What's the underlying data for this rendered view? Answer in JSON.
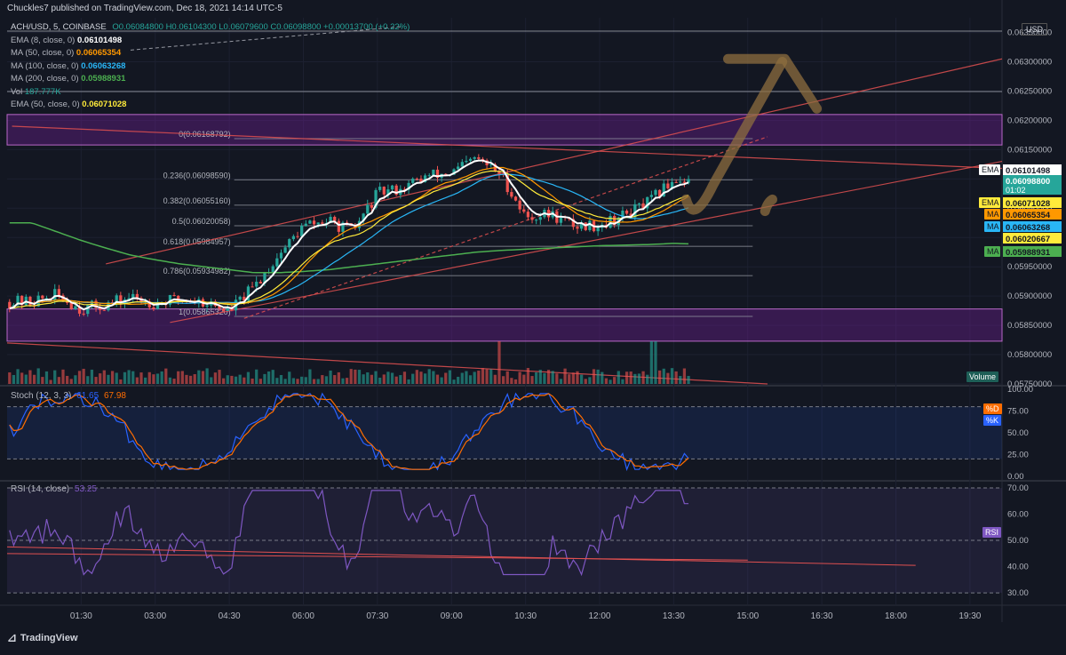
{
  "header": {
    "published": "Chuckles7 published on TradingView.com, Dec 18, 2021 14:14 UTC-5"
  },
  "symbol_line": {
    "symbol": "ACH/USD, 5, COINBASE",
    "ohlc": "O0.06084800 H0.06104300 L0.06079600 C0.06098800 +0.00013700 (+0.22%)"
  },
  "legend": [
    {
      "label": "EMA (8, close, 0)",
      "value": "0.06101498",
      "color": "#ffffff"
    },
    {
      "label": "MA (50, close, 0)",
      "value": "0.06065354",
      "color": "#ff9800"
    },
    {
      "label": "MA (100, close, 0)",
      "value": "0.06063268",
      "color": "#29b6f6"
    },
    {
      "label": "MA (200, close, 0)",
      "value": "0.05988931",
      "color": "#4caf50"
    },
    {
      "label": "Vol",
      "value": "187.777K",
      "color": "#26a69a"
    },
    {
      "label": "EMA (50, close, 0)",
      "value": "0.06071028",
      "color": "#ffeb3b"
    }
  ],
  "currency": "USD",
  "brand": "TradingView",
  "colors": {
    "bg": "#131722",
    "up": "#26a69a",
    "down": "#ef5350",
    "zone": "#7b1fa2",
    "trend": "#e05050",
    "arrow": "#8d6e3f"
  },
  "chart_data": [
    {
      "type": "candlestick",
      "title": "ACH/USD, 5, COINBASE",
      "ylim": [
        0.0575,
        0.0636
      ],
      "y_ticks": [
        "0.06350000",
        "0.06300000",
        "0.06250000",
        "0.06200000",
        "0.06150000",
        "0.06100000",
        "0.06050000",
        "0.06000000",
        "0.05950000",
        "0.05900000",
        "0.05850000",
        "0.05800000",
        "0.05750000"
      ],
      "x_ticks": [
        "01:30",
        "03:00",
        "04:30",
        "06:00",
        "07:30",
        "09:00",
        "10:30",
        "12:00",
        "13:30",
        "15:00",
        "16:30",
        "18:00",
        "19:30"
      ],
      "price_tags": [
        {
          "label": "EMA",
          "value": "0.06101498",
          "bg": "#ffffff",
          "fg": "#131722"
        },
        {
          "label": "",
          "value": "0.06098800",
          "sub": "01:02",
          "bg": "#26a69a",
          "fg": "#ffffff"
        },
        {
          "label": "EMA",
          "value": "0.06071028",
          "bg": "#ffeb3b",
          "fg": "#131722"
        },
        {
          "label": "MA",
          "value": "0.06065354",
          "bg": "#ff9800",
          "fg": "#131722"
        },
        {
          "label": "MA",
          "value": "0.06063268",
          "bg": "#29b6f6",
          "fg": "#131722"
        },
        {
          "label": "",
          "value": "0.06020667",
          "bg": "#ffeb3b",
          "fg": "#131722"
        },
        {
          "label": "MA",
          "value": "0.05988931",
          "bg": "#4caf50",
          "fg": "#131722"
        }
      ],
      "fib_levels": [
        {
          "ratio": "0",
          "label": "0(0.06168792)",
          "price": 0.06168792
        },
        {
          "ratio": "0.236",
          "label": "0.236(0.06098590)",
          "price": 0.0609859
        },
        {
          "ratio": "0.382",
          "label": "0.382(0.06055160)",
          "price": 0.0605516
        },
        {
          "ratio": "0.5",
          "label": "0.5(0.06020058)",
          "price": 0.06020058
        },
        {
          "ratio": "0.618",
          "label": "0.618(0.05984957)",
          "price": 0.05984957
        },
        {
          "ratio": "0.786",
          "label": "0.786(0.05934982)",
          "price": 0.05934982
        },
        {
          "ratio": "1",
          "label": "1(0.05865320)",
          "price": 0.0586532
        }
      ],
      "zones": [
        {
          "low": 0.06158,
          "high": 0.0621
        },
        {
          "low": 0.05823,
          "high": 0.05878
        }
      ],
      "series_approx": {
        "time_h": [
          0.5,
          1.0,
          1.5,
          2.0,
          2.5,
          3.0,
          3.5,
          4.0,
          4.5,
          5.0,
          5.5,
          6.0,
          6.5,
          7.0,
          7.5,
          8.0,
          8.5,
          9.0,
          9.5,
          10.0,
          10.5,
          11.0,
          11.5,
          12.0,
          12.5,
          13.0,
          13.5,
          13.85
        ],
        "close": [
          0.0589,
          0.05902,
          0.05878,
          0.05885,
          0.05898,
          0.05888,
          0.05895,
          0.0589,
          0.05875,
          0.05915,
          0.0597,
          0.0602,
          0.06028,
          0.0601,
          0.06075,
          0.06085,
          0.06105,
          0.0611,
          0.06135,
          0.06108,
          0.06035,
          0.0604,
          0.0602,
          0.06022,
          0.06038,
          0.0606,
          0.061,
          0.06099
        ],
        "ma200": [
          0.06025,
          0.0601,
          0.05995,
          0.05982,
          0.0597,
          0.05962,
          0.05955,
          0.0595,
          0.05945,
          0.0594,
          0.0594,
          0.05942,
          0.05945,
          0.0595,
          0.05955,
          0.0596,
          0.05965,
          0.0597,
          0.05975,
          0.05978,
          0.0598,
          0.05982,
          0.05984,
          0.05986,
          0.05987,
          0.05988,
          0.0599,
          0.05989
        ]
      }
    },
    {
      "type": "bar",
      "title": "Volume",
      "label": "Volume"
    },
    {
      "type": "line",
      "title": "Stoch (12, 3, 3)",
      "values": {
        "%K": "61.65",
        "%D": "67.98"
      },
      "ylim": [
        0,
        100
      ],
      "y_ticks": [
        "100.00",
        "75.00",
        "50.00",
        "25.00",
        "0.00"
      ],
      "legend": [
        "%D",
        "%K"
      ],
      "band": [
        20,
        80
      ]
    },
    {
      "type": "line",
      "title": "RSI (14, close)",
      "values": {
        "RSI": "53.25"
      },
      "ylim": [
        27,
        71
      ],
      "y_ticks": [
        "70.00",
        "60.00",
        "50.00",
        "40.00",
        "30.00"
      ],
      "legend": [
        "RSI"
      ],
      "band": [
        30,
        70
      ]
    }
  ]
}
